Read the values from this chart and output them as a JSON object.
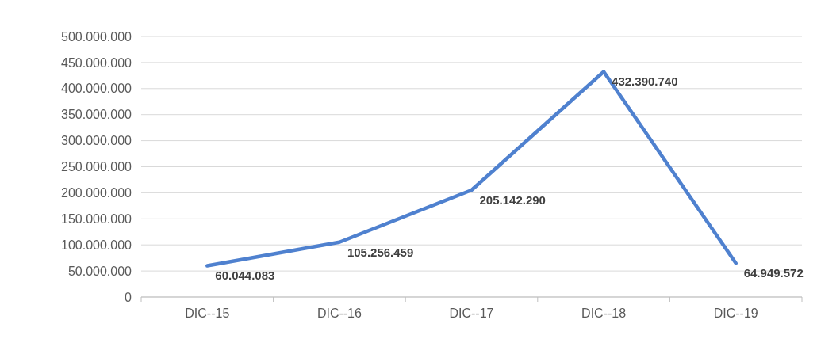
{
  "chart_data": {
    "type": "line",
    "categories": [
      "DIC--15",
      "DIC--16",
      "DIC--17",
      "DIC--18",
      "DIC--19"
    ],
    "series": [
      {
        "color": "#4f81cf",
        "values": [
          60044083,
          105256459,
          205142290,
          432390740,
          64949572
        ],
        "value_labels": [
          "60.044.083",
          "105.256.459",
          "205.142.290",
          "432.390.740",
          "64.949.572"
        ]
      }
    ],
    "ylim": [
      0,
      500000000
    ],
    "yticks": [
      0,
      {
        "value": 50000000,
        "label": "50.000.000"
      },
      {
        "value": 100000000,
        "label": "100.000.000"
      },
      {
        "value": 150000000,
        "label": "150.000.000"
      },
      {
        "value": 200000000,
        "label": "200.000.000"
      },
      {
        "value": 250000000,
        "label": "250.000.000"
      },
      {
        "value": 300000000,
        "label": "300.000.000"
      },
      {
        "value": 350000000,
        "label": "350.000.000"
      },
      {
        "value": 400000000,
        "label": "400.000.000"
      },
      {
        "value": 450000000,
        "label": "450.000.000"
      },
      {
        "value": 500000000,
        "label": "500.000.000"
      }
    ],
    "grid": "y",
    "marker": "none",
    "line_style": "solid"
  }
}
